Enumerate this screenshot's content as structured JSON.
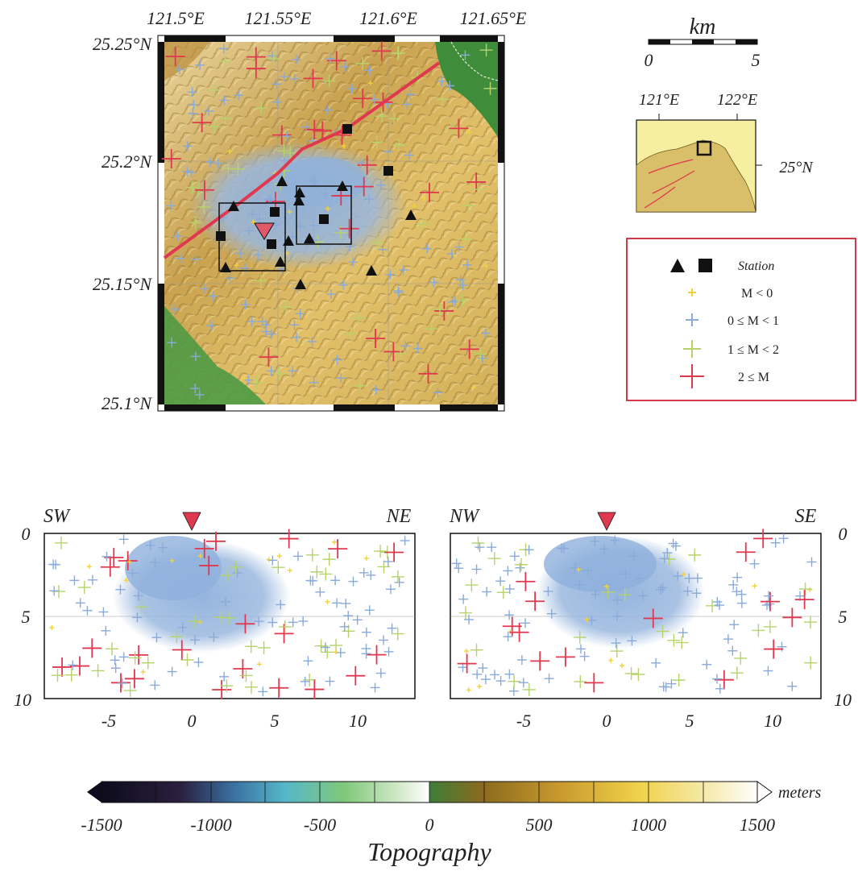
{
  "map": {
    "lon_labels": [
      "121.5°E",
      "121.55°E",
      "121.6°E",
      "121.65°E"
    ],
    "lat_labels": [
      "25.25°N",
      "25.2°N",
      "25.15°N",
      "25.1°N"
    ],
    "lon_range": [
      121.5,
      121.65
    ],
    "lat_range": [
      25.1,
      25.25
    ],
    "colors": {
      "fault": "#e0384f",
      "station": "#111111",
      "triangle_marker": "#e05a6a"
    }
  },
  "scalebar": {
    "unit": "km",
    "tick_labels": [
      "0",
      "5"
    ]
  },
  "inset": {
    "lon_labels": [
      "121°E",
      "122°E"
    ],
    "lat_label": "25°N"
  },
  "legend": {
    "items": [
      {
        "label": "Station",
        "symbol": "triangle-square",
        "color": "#111111"
      },
      {
        "label": "M < 0",
        "symbol": "plus-small",
        "color": "#f2d23c"
      },
      {
        "label": "0 ≤ M < 1",
        "symbol": "plus",
        "color": "#8aaad8"
      },
      {
        "label": "1 ≤ M < 2",
        "symbol": "plus",
        "color": "#b5d36a"
      },
      {
        "label": "2 ≤ M",
        "symbol": "plus-large",
        "color": "#e0384f"
      }
    ]
  },
  "sections": [
    {
      "left_label": "SW",
      "right_label": "NE",
      "x_ticks": [
        "-5",
        "0",
        "5",
        "10"
      ],
      "y_ticks": [
        "0",
        "5",
        "10"
      ]
    },
    {
      "left_label": "NW",
      "right_label": "SE",
      "x_ticks": [
        "-5",
        "0",
        "5",
        "10"
      ],
      "y_ticks": [
        "0",
        "5",
        "10"
      ]
    }
  ],
  "colorbar": {
    "tick_labels": [
      "-1500",
      "-1000",
      "-500",
      "0",
      "500",
      "1000",
      "1500"
    ],
    "unit": "meters",
    "title": "Topography",
    "range": [
      -1500,
      1500
    ]
  }
}
